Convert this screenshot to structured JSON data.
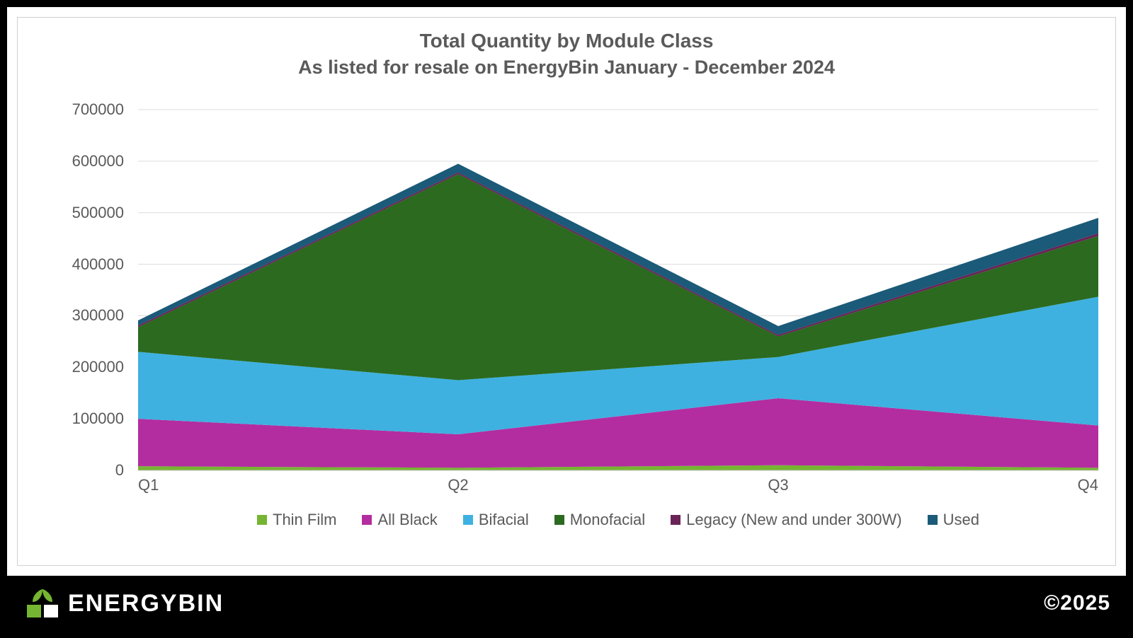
{
  "chart": {
    "type": "area-stacked",
    "title": "Total Quantity by Module Class",
    "subtitle": "As listed for resale on EnergyBin January - December 2024",
    "title_fontsize": 28,
    "subtitle_fontsize": 27,
    "title_color": "#5a5a5a",
    "background_color": "#ffffff",
    "page_border_color": "#000000",
    "card_border_color": "#d0d0d0",
    "grid_color": "#dcdcdc",
    "axis_text_color": "#5a5a5a",
    "axis_fontsize": 22,
    "legend_fontsize": 22,
    "x": {
      "categories": [
        "Q1",
        "Q2",
        "Q3",
        "Q4"
      ]
    },
    "y": {
      "min": 0,
      "max": 700000,
      "tick_step": 100000,
      "ticks": [
        0,
        100000,
        200000,
        300000,
        400000,
        500000,
        600000,
        700000
      ]
    },
    "series": [
      {
        "name": "Thin Film",
        "color": "#76b531",
        "values": [
          8000,
          5000,
          10000,
          5000
        ]
      },
      {
        "name": "All Black",
        "color": "#b32da0",
        "values": [
          92000,
          65000,
          130000,
          82000
        ]
      },
      {
        "name": "Bifacial",
        "color": "#3eb1e0",
        "values": [
          130000,
          105000,
          80000,
          250000
        ]
      },
      {
        "name": "Monofacial",
        "color": "#2b6a1f",
        "values": [
          48000,
          400000,
          40000,
          118000
        ]
      },
      {
        "name": "Legacy (New and under 300W)",
        "color": "#6a2357",
        "values": [
          3000,
          3000,
          3000,
          5000
        ]
      },
      {
        "name": "Used",
        "color": "#1b5a78",
        "values": [
          10000,
          17000,
          17000,
          30000
        ]
      }
    ]
  },
  "footer": {
    "brand": "ENERGYBIN",
    "brand_logo_leaf_color": "#76b531",
    "brand_logo_box_color": "#ffffff",
    "brand_text_color": "#ffffff",
    "background": "#000000",
    "copyright": "©2025"
  }
}
